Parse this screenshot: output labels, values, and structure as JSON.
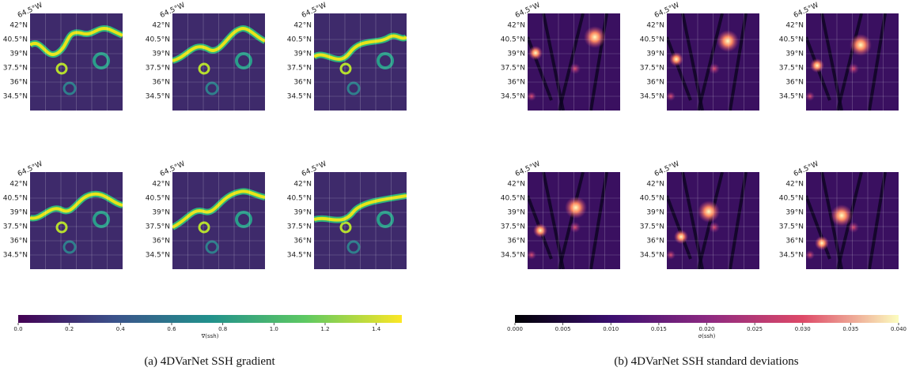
{
  "panels": [
    {
      "caption": "(a) 4DVarNet SSH gradient",
      "lon_label": "64.5°W",
      "lat_labels": [
        "42°N",
        "40.5°N",
        "39°N",
        "37.5°N",
        "36°N",
        "34.5°N"
      ],
      "colorbar": {
        "label": "∇(ssh)",
        "lim": [
          0,
          1.5
        ],
        "ticks": [
          {
            "value": 0,
            "label": "0.0"
          },
          {
            "value": 0.2,
            "label": "0.2"
          },
          {
            "value": 0.4,
            "label": "0.4"
          },
          {
            "value": 0.6,
            "label": "0.6"
          },
          {
            "value": 0.8,
            "label": "0.8"
          },
          {
            "value": 1,
            "label": "1.0"
          },
          {
            "value": 1.2,
            "label": "1.2"
          },
          {
            "value": 1.4,
            "label": "1.4"
          }
        ]
      }
    },
    {
      "caption": "(b) 4DVarNet SSH standard deviations",
      "lon_label": "64.5°W",
      "lat_labels": [
        "42°N",
        "40.5°N",
        "39°N",
        "37.5°N",
        "36°N",
        "34.5°N"
      ],
      "colorbar": {
        "label": "σ(ssh)",
        "lim": [
          0,
          0.04
        ],
        "ticks": [
          {
            "value": 0,
            "label": "0.000"
          },
          {
            "value": 0.005,
            "label": "0.005"
          },
          {
            "value": 0.01,
            "label": "0.010"
          },
          {
            "value": 0.015,
            "label": "0.015"
          },
          {
            "value": 0.02,
            "label": "0.020"
          },
          {
            "value": 0.025,
            "label": "0.025"
          },
          {
            "value": 0.03,
            "label": "0.030"
          },
          {
            "value": 0.035,
            "label": "0.035"
          },
          {
            "value": 0.04,
            "label": "0.040"
          }
        ]
      }
    }
  ]
}
